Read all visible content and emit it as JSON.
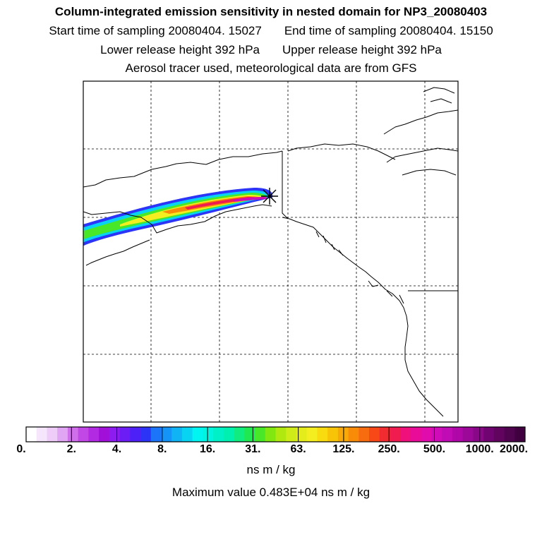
{
  "titles": {
    "line1": "Column-integrated emission sensitivity in nested domain for NP3_20080403",
    "line2_left": "Start time of sampling 20080404. 15027",
    "line2_right": "End time of sampling 20080404. 15150",
    "line3_left": "Lower release height  392 hPa",
    "line3_right": "Upper release height  392 hPa",
    "line4": "Aerosol tracer used, meteorological data are from GFS"
  },
  "colorbar": {
    "tick_labels": [
      "0.",
      "2.",
      "4.",
      "8.",
      "16.",
      "31.",
      "63.",
      "125.",
      "250.",
      "500.",
      "1000.",
      "2000."
    ],
    "colors": [
      "#ffffff",
      "#f6e6fb",
      "#eecdf8",
      "#e0a6f3",
      "#cf6fea",
      "#c248e6",
      "#b22ae2",
      "#a010d8",
      "#8c1cf0",
      "#6c1cf4",
      "#4c20f6",
      "#2c34f8",
      "#1c74f8",
      "#1494f6",
      "#10b4f4",
      "#08d4f2",
      "#00f4f0",
      "#00f4e0",
      "#00f0c8",
      "#00f0b0",
      "#10ec80",
      "#20e850",
      "#48e828",
      "#80e810",
      "#b0e810",
      "#d0ec18",
      "#e4ec1c",
      "#f4ee20",
      "#f8dc10",
      "#f8c408",
      "#f8a808",
      "#f88c08",
      "#f86c10",
      "#f84818",
      "#f02c30",
      "#f01c50",
      "#f0107c",
      "#e80c98",
      "#e00cac",
      "#d00cb8",
      "#c00cb4",
      "#b008a8",
      "#9c0898",
      "#880888",
      "#700470",
      "#600460",
      "#500450",
      "#400040"
    ],
    "units": "ns m / kg"
  },
  "max_value_text": "Maximum value  0.483E+04 ns m / kg",
  "plume": {
    "source_marker": "release-point-star",
    "colors": {
      "outer": "#2c34f8",
      "cyan": "#08d4f2",
      "green": "#48e828",
      "yellow": "#f4ee20",
      "orange": "#f88c08",
      "red": "#f01c50",
      "core": "#d00cb8"
    }
  }
}
